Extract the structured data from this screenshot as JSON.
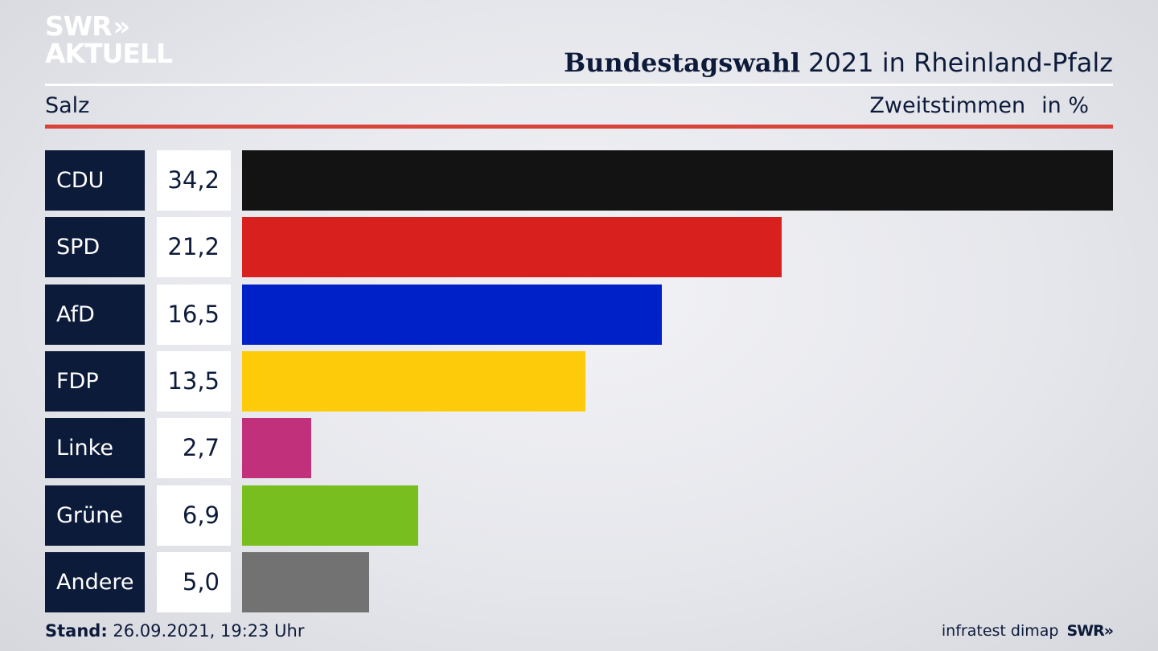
{
  "brand": {
    "line1": "SWR",
    "line1_mark": "»",
    "line2": "AKTUELL"
  },
  "header": {
    "title_bold": "Bundestagswahl",
    "title_rest": " 2021 in Rheinland-Pfalz",
    "region": "Salz",
    "metric": "Zweitstimmen",
    "unit": "in %"
  },
  "chart_data": {
    "type": "bar",
    "orientation": "horizontal",
    "categories": [
      "CDU",
      "SPD",
      "AfD",
      "FDP",
      "Linke",
      "Grüne",
      "Andere"
    ],
    "values": [
      34.2,
      21.2,
      16.5,
      13.5,
      2.7,
      6.9,
      5.0
    ],
    "value_labels": [
      "34,2",
      "21,2",
      "16,5",
      "13,5",
      "2,7",
      "6,9",
      "5,0"
    ],
    "colors": [
      "#131313",
      "#d8201f",
      "#0020c8",
      "#fecb0a",
      "#c1307a",
      "#78be1e",
      "#727272"
    ],
    "title": "Bundestagswahl 2021 in Rheinland-Pfalz",
    "grid": false
  },
  "footer": {
    "stand_label": "Stand:",
    "stand_value": " 26.09.2021, 19:23 Uhr",
    "source": "infratest dimap",
    "brand_small": "SWR»"
  }
}
